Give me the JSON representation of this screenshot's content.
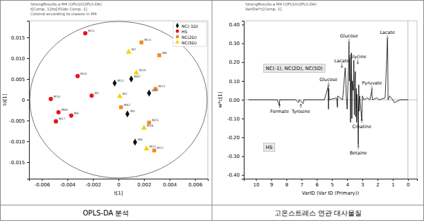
{
  "chart_data": [
    {
      "type": "scatter",
      "title": "OPLS-DA 분석",
      "subtitle": [
        "StrongResults.a M4 (OPLS/O2PLS-DA)",
        "t[Comp. 1]/to[XSide Comp. 1]",
        "Colored according to classes in M4"
      ],
      "x_label": "t[1]",
      "y_label": "to[1]",
      "xlim": [
        -0.007,
        0.007
      ],
      "xticks": [
        -0.006,
        -0.004,
        -0.002,
        0,
        0.002,
        0.004,
        0.006
      ],
      "ylim": [
        -0.019,
        0.019
      ],
      "yticks": [
        {
          "value": -0.015,
          "label": "-0.015"
        },
        {
          "value": -0.01,
          "label": "-0.010"
        },
        {
          "value": -0.005,
          "label": "-0.005"
        },
        {
          "value": 0,
          "label": "0"
        },
        {
          "value": 0.005,
          "label": "0.005"
        },
        {
          "value": 0.01,
          "label": "0.010"
        },
        {
          "value": 0.015,
          "label": "0.015"
        }
      ],
      "legend": "upper right",
      "series": [
        {
          "name": "NC(-1D)",
          "color": "#111111",
          "marker": "diamond",
          "x": [
            -0.0003,
            0.001,
            0.0024,
            0.0007,
            0.0013
          ],
          "y": [
            0.004,
            0.005,
            0.0016,
            -0.0034,
            -0.0102
          ],
          "labels": [
            "M21",
            "M47",
            "M37",
            "M3",
            "M4"
          ]
        },
        {
          "name": "HS",
          "color": "#e8141c",
          "marker": "circle",
          "x": [
            -0.0026,
            -0.0032,
            -0.0053,
            -0.0047,
            -0.0049,
            -0.0037,
            -0.0021
          ],
          "y": [
            0.016,
            0.0057,
            0.0002,
            -0.003,
            -0.0052,
            -0.0038,
            0.001
          ],
          "labels": [
            "M12",
            "M31",
            "M10",
            "M40",
            "M27",
            "M6",
            "M1"
          ]
        },
        {
          "name": "NC(2D)",
          "color": "#f08a24",
          "marker": "square",
          "x": [
            0.0018,
            0.0032,
            0.0029,
            0.0002,
            0.0024,
            0.0028
          ],
          "y": [
            0.0138,
            0.0107,
            0.0026,
            -0.0018,
            -0.0055,
            -0.0122
          ],
          "labels": [
            "M13",
            "M8",
            "M23",
            "M42",
            "M25",
            "M17"
          ]
        },
        {
          "name": "NC(5D)",
          "color": "#f5d312",
          "marker": "triangle",
          "x": [
            0.0008,
            0.0014,
            0.0001,
            0.002,
            0.0022
          ],
          "y": [
            0.0115,
            0.0065,
            0.0008,
            -0.0068,
            -0.0118
          ],
          "labels": [
            "M7",
            "M19",
            "M2",
            "M34",
            "M15"
          ]
        }
      ]
    },
    {
      "type": "line",
      "title": "고온스트레스 연관 대사물질",
      "subtitle": [
        "StrongResults.a M4 (OPLS/O2PLS-DA)",
        "VarIDw*c[Comp. 1]"
      ],
      "x_label": "VarID (Var ID (Primary))",
      "y_label": "w*c[1]",
      "xlim": [
        10.8,
        -0.6
      ],
      "xticks": [
        10,
        9,
        8,
        7,
        6,
        5,
        4,
        3,
        2,
        1,
        0
      ],
      "ylim": [
        -0.42,
        0.42
      ],
      "yticks": [
        {
          "value": -0.4,
          "label": "-0.40"
        },
        {
          "value": -0.3,
          "label": "-0.30"
        },
        {
          "value": -0.2,
          "label": "-0.20"
        },
        {
          "value": -0.1,
          "label": "-0.10"
        },
        {
          "value": 0,
          "label": "0.00"
        },
        {
          "value": 0.1,
          "label": "0.10"
        },
        {
          "value": 0.2,
          "label": "0.20"
        },
        {
          "value": 0.3,
          "label": "0.30"
        },
        {
          "value": 0.4,
          "label": "0.40"
        }
      ],
      "color": "#000000",
      "x": [
        10.5,
        9.5,
        8.6,
        8.46,
        8.44,
        7.8,
        7.4,
        7.2,
        7.15,
        6.9,
        6.85,
        6.0,
        5.5,
        5.25,
        5.23,
        5.21,
        5.19,
        4.7,
        4.64,
        4.62,
        4.3,
        4.13,
        4.1,
        4.06,
        4.0,
        3.95,
        3.91,
        3.88,
        3.85,
        3.82,
        3.78,
        3.75,
        3.72,
        3.69,
        3.66,
        3.6,
        3.56,
        3.53,
        3.5,
        3.46,
        3.44,
        3.4,
        3.38,
        3.36,
        3.3,
        3.27,
        3.24,
        3.21,
        3.18,
        3.04,
        3.0,
        2.9,
        2.7,
        2.5,
        2.38,
        2.34,
        2.05,
        1.9,
        1.5,
        1.35,
        1.33,
        1.31,
        1.2,
        1.0,
        0.9,
        0.5,
        0
      ],
      "values": [
        0,
        0,
        0,
        -0.03,
        0,
        0,
        0,
        -0.015,
        0,
        -0.02,
        0,
        0,
        0,
        0.07,
        -0.05,
        0.06,
        0,
        0.01,
        -0.04,
        0.02,
        0,
        0.17,
        0.12,
        0.02,
        -0.05,
        0.08,
        0.18,
        0.3,
        0.1,
        0.22,
        -0.12,
        0.12,
        0.25,
        -0.1,
        0.1,
        0.05,
        0.21,
        -0.08,
        0.09,
        0.15,
        -0.09,
        0.06,
        -0.12,
        0.03,
        -0.05,
        -0.24,
        0.08,
        -0.06,
        0.02,
        -0.11,
        0.02,
        0,
        0.01,
        0,
        0.05,
        0,
        0.01,
        0,
        0.01,
        0.32,
        0.25,
        0,
        0.02,
        0,
        -0.015,
        0,
        0
      ],
      "annotations": [
        {
          "text": "Formate",
          "x": 8.45,
          "y": -0.07
        },
        {
          "text": "Tyrosine",
          "x": 7.05,
          "y": -0.07
        },
        {
          "text": "Glucose",
          "x": 5.23,
          "y": 0.1
        },
        {
          "text": "Lacate",
          "x": 4.35,
          "y": 0.2
        },
        {
          "text": "Glucose",
          "x": 3.88,
          "y": 0.33
        },
        {
          "text": "Glycine",
          "x": 3.3,
          "y": 0.22
        },
        {
          "text": "Pyruvate",
          "x": 2.37,
          "y": 0.08
        },
        {
          "text": "Lacate",
          "x": 1.35,
          "y": 0.35
        },
        {
          "text": "Creatine",
          "x": 3.04,
          "y": -0.15
        },
        {
          "text": "Betaine",
          "x": 3.27,
          "y": -0.29
        }
      ],
      "group_labels": [
        {
          "text": "NC(-1), NC(2D), NC(5D)",
          "x": 9.5,
          "y": 0.16
        },
        {
          "text": "HS",
          "x": 9.5,
          "y": -0.26
        }
      ]
    }
  ]
}
